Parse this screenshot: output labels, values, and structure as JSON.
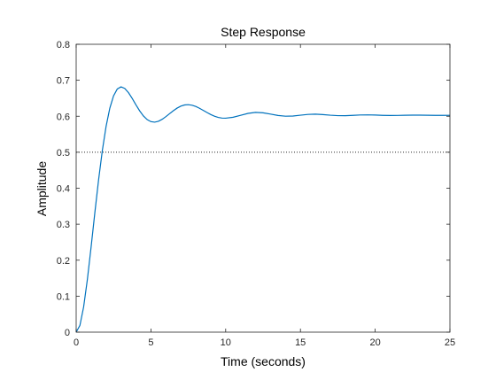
{
  "chart_data": {
    "type": "line",
    "title": "Step Response",
    "xlabel": "Time (seconds)",
    "ylabel": "Amplitude",
    "xlim": [
      0,
      25
    ],
    "ylim": [
      0,
      0.8
    ],
    "xticks": [
      0,
      5,
      10,
      15,
      20,
      25
    ],
    "yticks": [
      0,
      0.1,
      0.2,
      0.3,
      0.4,
      0.5,
      0.6,
      0.7,
      0.8
    ],
    "xtick_labels": [
      "0",
      "5",
      "10",
      "15",
      "20",
      "25"
    ],
    "ytick_labels": [
      "0",
      "0.1",
      "0.2",
      "0.3",
      "0.4",
      "0.5",
      "0.6",
      "0.7",
      "0.8"
    ],
    "grid": false,
    "steady_state": 0.5,
    "series": [
      {
        "color": "#0072BD",
        "x": [
          0,
          0.25,
          0.5,
          0.75,
          1.0,
          1.25,
          1.5,
          1.75,
          2.0,
          2.25,
          2.5,
          2.75,
          3.0,
          3.25,
          3.5,
          3.75,
          4.0,
          4.25,
          4.5,
          4.75,
          5.0,
          5.25,
          5.5,
          5.75,
          6.0,
          6.25,
          6.5,
          6.75,
          7.0,
          7.25,
          7.5,
          7.75,
          8.0,
          8.25,
          8.5,
          8.75,
          9.0,
          9.25,
          9.5,
          9.75,
          10.0,
          10.5,
          11.0,
          11.5,
          12.0,
          12.5,
          13.0,
          13.5,
          14.0,
          14.5,
          15.0,
          15.5,
          16.0,
          16.5,
          17.0,
          17.5,
          18.0,
          18.5,
          19.0,
          19.5,
          20.0,
          20.5,
          21.0,
          21.5,
          22.0,
          22.5,
          23.0,
          23.5,
          24.0,
          24.5,
          25.0
        ],
        "y": [
          0,
          0.0186,
          0.0703,
          0.1466,
          0.2371,
          0.3323,
          0.4236,
          0.5048,
          0.5717,
          0.6224,
          0.6567,
          0.6758,
          0.6817,
          0.6773,
          0.6655,
          0.6493,
          0.6316,
          0.6148,
          0.6008,
          0.5907,
          0.585,
          0.5836,
          0.5861,
          0.5915,
          0.5989,
          0.6072,
          0.6154,
          0.6226,
          0.6281,
          0.6313,
          0.6321,
          0.6306,
          0.6271,
          0.6222,
          0.6164,
          0.6104,
          0.6048,
          0.6002,
          0.5968,
          0.5949,
          0.5946,
          0.5972,
          0.6026,
          0.608,
          0.6107,
          0.6096,
          0.606,
          0.6021,
          0.6002,
          0.6007,
          0.6029,
          0.6051,
          0.6058,
          0.6047,
          0.6029,
          0.6017,
          0.6016,
          0.6025,
          0.6035,
          0.6038,
          0.6033,
          0.6025,
          0.6021,
          0.6023,
          0.6028,
          0.6031,
          0.603,
          0.6027,
          0.6024,
          0.6024,
          0.6026
        ]
      }
    ]
  }
}
